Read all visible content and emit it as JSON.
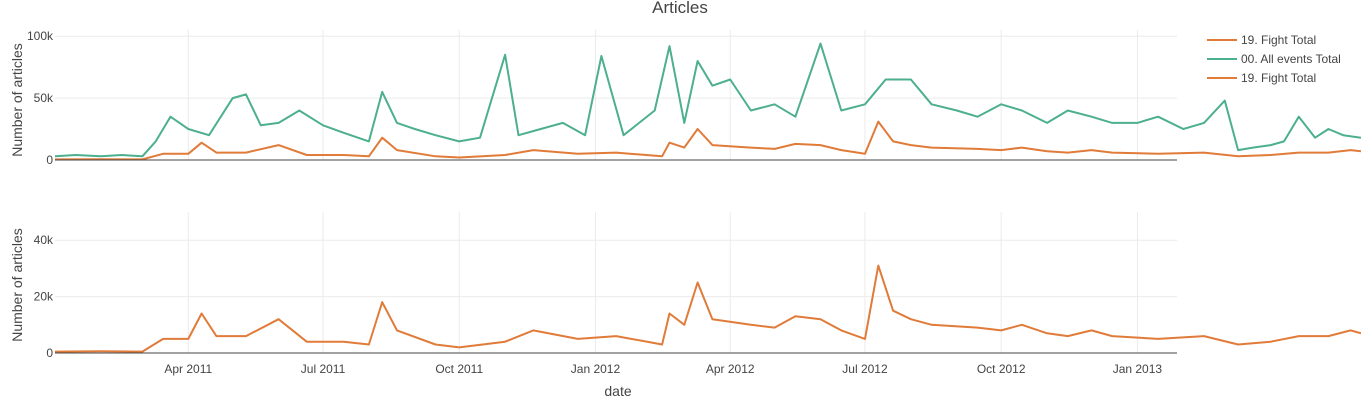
{
  "chart_data": {
    "type": "line",
    "title": "Articles",
    "xlabel": "date",
    "x_range": [
      "2011-01-01",
      "2013-06-01"
    ],
    "x_ticks": [
      "2011-04-01",
      "2011-07-01",
      "2011-10-01",
      "2012-01-01",
      "2012-04-01",
      "2012-07-01",
      "2012-10-01",
      "2013-01-01"
    ],
    "x_tick_labels": [
      "Apr 2011",
      "Jul 2011",
      "Oct 2011",
      "Jan 2012",
      "Apr 2012",
      "Jul 2012",
      "Oct 2012",
      "Jan 2013"
    ],
    "grid": true,
    "legend_position": "top-right",
    "colors": {
      "fight": "#e07b39",
      "all_events": "#4caf8e"
    },
    "panels": [
      {
        "ylabel": "Number of articles",
        "ylim": [
          0,
          105000
        ],
        "y_ticks": [
          0,
          50000,
          100000
        ],
        "y_tick_labels": [
          "0",
          "50k",
          "100k"
        ],
        "series": [
          {
            "name": "00. All events Total",
            "color": "#4caf8e",
            "points": [
              [
                "2011-01-01",
                3000
              ],
              [
                "2011-01-15",
                4000
              ],
              [
                "2011-02-01",
                3000
              ],
              [
                "2011-02-15",
                4000
              ],
              [
                "2011-03-01",
                3000
              ],
              [
                "2011-03-10",
                15000
              ],
              [
                "2011-03-20",
                35000
              ],
              [
                "2011-04-01",
                25000
              ],
              [
                "2011-04-15",
                20000
              ],
              [
                "2011-05-01",
                50000
              ],
              [
                "2011-05-10",
                53000
              ],
              [
                "2011-05-20",
                28000
              ],
              [
                "2011-06-01",
                30000
              ],
              [
                "2011-06-15",
                40000
              ],
              [
                "2011-07-01",
                28000
              ],
              [
                "2011-07-15",
                22000
              ],
              [
                "2011-08-01",
                15000
              ],
              [
                "2011-08-10",
                55000
              ],
              [
                "2011-08-20",
                30000
              ],
              [
                "2011-09-01",
                25000
              ],
              [
                "2011-09-15",
                20000
              ],
              [
                "2011-10-01",
                15000
              ],
              [
                "2011-10-15",
                18000
              ],
              [
                "2011-11-01",
                85000
              ],
              [
                "2011-11-10",
                20000
              ],
              [
                "2011-11-25",
                25000
              ],
              [
                "2011-12-10",
                30000
              ],
              [
                "2011-12-25",
                20000
              ],
              [
                "2012-01-05",
                84000
              ],
              [
                "2012-01-20",
                20000
              ],
              [
                "2012-02-10",
                40000
              ],
              [
                "2012-02-20",
                92000
              ],
              [
                "2012-03-01",
                30000
              ],
              [
                "2012-03-10",
                80000
              ],
              [
                "2012-03-20",
                60000
              ],
              [
                "2012-04-01",
                65000
              ],
              [
                "2012-04-15",
                40000
              ],
              [
                "2012-05-01",
                45000
              ],
              [
                "2012-05-15",
                35000
              ],
              [
                "2012-06-01",
                94000
              ],
              [
                "2012-06-15",
                40000
              ],
              [
                "2012-07-01",
                45000
              ],
              [
                "2012-07-15",
                65000
              ],
              [
                "2012-08-01",
                65000
              ],
              [
                "2012-08-15",
                45000
              ],
              [
                "2012-09-01",
                40000
              ],
              [
                "2012-09-15",
                35000
              ],
              [
                "2012-10-01",
                45000
              ],
              [
                "2012-10-15",
                40000
              ],
              [
                "2012-11-01",
                30000
              ],
              [
                "2012-11-15",
                40000
              ],
              [
                "2012-12-01",
                35000
              ],
              [
                "2012-12-15",
                30000
              ],
              [
                "2013-01-01",
                30000
              ],
              [
                "2013-01-15",
                35000
              ],
              [
                "2013-02-01",
                25000
              ],
              [
                "2013-02-15",
                30000
              ],
              [
                "2013-03-01",
                48000
              ],
              [
                "2013-03-10",
                8000
              ],
              [
                "2013-03-20",
                10000
              ],
              [
                "2013-04-01",
                12000
              ],
              [
                "2013-04-10",
                15000
              ],
              [
                "2013-04-20",
                35000
              ],
              [
                "2013-05-01",
                18000
              ],
              [
                "2013-05-10",
                25000
              ],
              [
                "2013-05-20",
                20000
              ],
              [
                "2013-06-01",
                18000
              ]
            ]
          },
          {
            "name": "19. Fight  Total",
            "color": "#e07b39",
            "points": [
              [
                "2011-01-01",
                500
              ],
              [
                "2011-02-01",
                600
              ],
              [
                "2011-03-01",
                500
              ],
              [
                "2011-03-15",
                5000
              ],
              [
                "2011-04-01",
                5000
              ],
              [
                "2011-04-10",
                14000
              ],
              [
                "2011-04-20",
                6000
              ],
              [
                "2011-05-10",
                6000
              ],
              [
                "2011-06-01",
                12000
              ],
              [
                "2011-06-20",
                4000
              ],
              [
                "2011-07-15",
                4000
              ],
              [
                "2011-08-01",
                3000
              ],
              [
                "2011-08-10",
                18000
              ],
              [
                "2011-08-20",
                8000
              ],
              [
                "2011-09-15",
                3000
              ],
              [
                "2011-10-01",
                2000
              ],
              [
                "2011-11-01",
                4000
              ],
              [
                "2011-11-20",
                8000
              ],
              [
                "2011-12-20",
                5000
              ],
              [
                "2012-01-15",
                6000
              ],
              [
                "2012-02-15",
                3000
              ],
              [
                "2012-02-20",
                14000
              ],
              [
                "2012-03-01",
                10000
              ],
              [
                "2012-03-10",
                25000
              ],
              [
                "2012-03-20",
                12000
              ],
              [
                "2012-04-15",
                10000
              ],
              [
                "2012-05-01",
                9000
              ],
              [
                "2012-05-15",
                13000
              ],
              [
                "2012-06-01",
                12000
              ],
              [
                "2012-06-15",
                8000
              ],
              [
                "2012-07-01",
                5000
              ],
              [
                "2012-07-10",
                31000
              ],
              [
                "2012-07-20",
                15000
              ],
              [
                "2012-08-01",
                12000
              ],
              [
                "2012-08-15",
                10000
              ],
              [
                "2012-09-15",
                9000
              ],
              [
                "2012-10-01",
                8000
              ],
              [
                "2012-10-15",
                10000
              ],
              [
                "2012-11-01",
                7000
              ],
              [
                "2012-11-15",
                6000
              ],
              [
                "2012-12-01",
                8000
              ],
              [
                "2012-12-15",
                6000
              ],
              [
                "2013-01-15",
                5000
              ],
              [
                "2013-02-15",
                6000
              ],
              [
                "2013-03-10",
                3000
              ],
              [
                "2013-04-01",
                4000
              ],
              [
                "2013-04-20",
                6000
              ],
              [
                "2013-05-10",
                6000
              ],
              [
                "2013-05-25",
                8000
              ],
              [
                "2013-06-01",
                7000
              ]
            ]
          }
        ]
      },
      {
        "ylabel": "Number of articles",
        "ylim": [
          0,
          50000
        ],
        "y_ticks": [
          0,
          20000,
          40000
        ],
        "y_tick_labels": [
          "0",
          "20k",
          "40k"
        ],
        "series": [
          {
            "name": "19. Fight  Total",
            "color": "#e07b39",
            "points": [
              [
                "2011-01-01",
                500
              ],
              [
                "2011-02-01",
                600
              ],
              [
                "2011-03-01",
                500
              ],
              [
                "2011-03-15",
                5000
              ],
              [
                "2011-04-01",
                5000
              ],
              [
                "2011-04-10",
                14000
              ],
              [
                "2011-04-20",
                6000
              ],
              [
                "2011-05-10",
                6000
              ],
              [
                "2011-06-01",
                12000
              ],
              [
                "2011-06-20",
                4000
              ],
              [
                "2011-07-15",
                4000
              ],
              [
                "2011-08-01",
                3000
              ],
              [
                "2011-08-10",
                18000
              ],
              [
                "2011-08-20",
                8000
              ],
              [
                "2011-09-15",
                3000
              ],
              [
                "2011-10-01",
                2000
              ],
              [
                "2011-11-01",
                4000
              ],
              [
                "2011-11-20",
                8000
              ],
              [
                "2011-12-20",
                5000
              ],
              [
                "2012-01-15",
                6000
              ],
              [
                "2012-02-15",
                3000
              ],
              [
                "2012-02-20",
                14000
              ],
              [
                "2012-03-01",
                10000
              ],
              [
                "2012-03-10",
                25000
              ],
              [
                "2012-03-20",
                12000
              ],
              [
                "2012-04-15",
                10000
              ],
              [
                "2012-05-01",
                9000
              ],
              [
                "2012-05-15",
                13000
              ],
              [
                "2012-06-01",
                12000
              ],
              [
                "2012-06-15",
                8000
              ],
              [
                "2012-07-01",
                5000
              ],
              [
                "2012-07-10",
                31000
              ],
              [
                "2012-07-20",
                15000
              ],
              [
                "2012-08-01",
                12000
              ],
              [
                "2012-08-15",
                10000
              ],
              [
                "2012-09-15",
                9000
              ],
              [
                "2012-10-01",
                8000
              ],
              [
                "2012-10-15",
                10000
              ],
              [
                "2012-11-01",
                7000
              ],
              [
                "2012-11-15",
                6000
              ],
              [
                "2012-12-01",
                8000
              ],
              [
                "2012-12-15",
                6000
              ],
              [
                "2013-01-15",
                5000
              ],
              [
                "2013-02-15",
                6000
              ],
              [
                "2013-03-10",
                3000
              ],
              [
                "2013-04-01",
                4000
              ],
              [
                "2013-04-20",
                6000
              ],
              [
                "2013-05-10",
                6000
              ],
              [
                "2013-05-25",
                8000
              ],
              [
                "2013-06-01",
                7000
              ]
            ]
          }
        ]
      }
    ],
    "legend": [
      {
        "name": "19. Fight  Total",
        "color": "#e07b39"
      },
      {
        "name": "00. All events Total",
        "color": "#4caf8e"
      },
      {
        "name": "19. Fight  Total",
        "color": "#e07b39"
      }
    ]
  }
}
